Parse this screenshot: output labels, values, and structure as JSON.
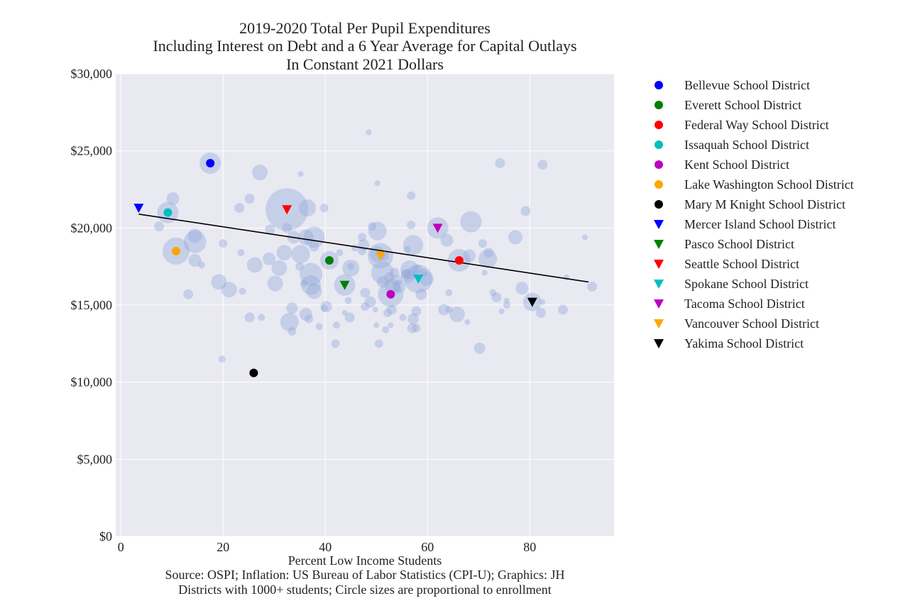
{
  "chart_data": {
    "type": "scatter",
    "title": [
      "2019-2020 Total Per Pupil Expenditures",
      "Including Interest on Debt and a 6 Year Average for Capital Outlays",
      "In Constant 2021 Dollars"
    ],
    "xlabel": "Percent Low Income Students",
    "caption": [
      "Source: OSPI; Inflation: US Bureau of Labor Statistics (CPI-U); Graphics: JH",
      "Districts with 1000+ students; Circle sizes are proportional to enrollment"
    ],
    "xlim": [
      -1,
      96.5
    ],
    "ylim": [
      0,
      30000
    ],
    "x_ticks": [
      0,
      20,
      40,
      60,
      80
    ],
    "y_ticks": [
      0,
      5000,
      10000,
      15000,
      20000,
      25000,
      30000
    ],
    "y_tick_labels": [
      "$0",
      "$5,000",
      "$10,000",
      "$15,000",
      "$20,000",
      "$25,000",
      "$30,000"
    ],
    "grid": true,
    "background_color": "#e9e9f2",
    "grid_color": "#ffffff",
    "bubble_color": "#8ea5d8",
    "legend_position": "outside-right",
    "trend_line": {
      "x": [
        3.5,
        91.5
      ],
      "y": [
        20900,
        16500
      ],
      "color": "#000000"
    },
    "highlighted": [
      {
        "name": "Bellevue School District",
        "x": 17.5,
        "y": 24200,
        "marker": "circle",
        "color": "#0000ff"
      },
      {
        "name": "Everett School District",
        "x": 40.8,
        "y": 17900,
        "marker": "circle",
        "color": "#008000"
      },
      {
        "name": "Federal Way School District",
        "x": 66.2,
        "y": 17900,
        "marker": "circle",
        "color": "#ff0000"
      },
      {
        "name": "Issaquah School District",
        "x": 9.2,
        "y": 21000,
        "marker": "circle",
        "color": "#00bfbf"
      },
      {
        "name": "Kent School District",
        "x": 52.8,
        "y": 15700,
        "marker": "circle",
        "color": "#bf00bf"
      },
      {
        "name": "Lake Washington School District",
        "x": 10.8,
        "y": 18500,
        "marker": "circle",
        "color": "#ffa500"
      },
      {
        "name": "Mary M Knight School District",
        "x": 26.0,
        "y": 10600,
        "marker": "circle",
        "color": "#000000"
      },
      {
        "name": "Mercer Island School District",
        "x": 3.5,
        "y": 21300,
        "marker": "triangle-down",
        "color": "#0000ff"
      },
      {
        "name": "Pasco School District",
        "x": 43.8,
        "y": 16300,
        "marker": "triangle-down",
        "color": "#008000"
      },
      {
        "name": "Seattle School District",
        "x": 32.5,
        "y": 21200,
        "marker": "triangle-down",
        "color": "#ff0000"
      },
      {
        "name": "Spokane School District",
        "x": 58.2,
        "y": 16700,
        "marker": "triangle-down",
        "color": "#00bfbf"
      },
      {
        "name": "Tacoma School District",
        "x": 62.0,
        "y": 20000,
        "marker": "triangle-down",
        "color": "#bf00bf"
      },
      {
        "name": "Vancouver School District",
        "x": 50.8,
        "y": 18200,
        "marker": "triangle-down",
        "color": "#ffa500"
      },
      {
        "name": "Yakima School District",
        "x": 80.5,
        "y": 15200,
        "marker": "triangle-down",
        "color": "#000000"
      }
    ],
    "bubbles": [
      {
        "x": 32.5,
        "y": 21200,
        "s": 30
      },
      {
        "x": 17.5,
        "y": 24200,
        "s": 15
      },
      {
        "x": 10.8,
        "y": 18500,
        "s": 19
      },
      {
        "x": 9.2,
        "y": 21000,
        "s": 15
      },
      {
        "x": 62.0,
        "y": 20000,
        "s": 15
      },
      {
        "x": 58.2,
        "y": 16700,
        "s": 20
      },
      {
        "x": 66.2,
        "y": 17900,
        "s": 16
      },
      {
        "x": 52.8,
        "y": 15700,
        "s": 18
      },
      {
        "x": 50.8,
        "y": 18200,
        "s": 18
      },
      {
        "x": 43.8,
        "y": 16300,
        "s": 15
      },
      {
        "x": 40.8,
        "y": 17900,
        "s": 13
      },
      {
        "x": 80.5,
        "y": 15200,
        "s": 13
      },
      {
        "x": 14.5,
        "y": 19100,
        "s": 16
      },
      {
        "x": 14.5,
        "y": 19500,
        "s": 10
      },
      {
        "x": 14.5,
        "y": 17900,
        "s": 9
      },
      {
        "x": 10.2,
        "y": 21900,
        "s": 9
      },
      {
        "x": 7.5,
        "y": 20100,
        "s": 7
      },
      {
        "x": 13.2,
        "y": 15700,
        "s": 7
      },
      {
        "x": 15.8,
        "y": 17600,
        "s": 5
      },
      {
        "x": 19.2,
        "y": 16500,
        "s": 11
      },
      {
        "x": 20.0,
        "y": 19000,
        "s": 6
      },
      {
        "x": 21.2,
        "y": 16000,
        "s": 11
      },
      {
        "x": 19.8,
        "y": 11500,
        "s": 5
      },
      {
        "x": 23.2,
        "y": 21300,
        "s": 7
      },
      {
        "x": 25.2,
        "y": 21900,
        "s": 7
      },
      {
        "x": 27.2,
        "y": 23600,
        "s": 11
      },
      {
        "x": 23.5,
        "y": 18400,
        "s": 5
      },
      {
        "x": 23.8,
        "y": 15900,
        "s": 5
      },
      {
        "x": 25.2,
        "y": 14200,
        "s": 7
      },
      {
        "x": 26.2,
        "y": 17600,
        "s": 11
      },
      {
        "x": 27.5,
        "y": 14200,
        "s": 5
      },
      {
        "x": 29.2,
        "y": 19900,
        "s": 7
      },
      {
        "x": 29.0,
        "y": 18000,
        "s": 9
      },
      {
        "x": 30.2,
        "y": 16400,
        "s": 11
      },
      {
        "x": 31.0,
        "y": 17400,
        "s": 11
      },
      {
        "x": 32.0,
        "y": 18400,
        "s": 11
      },
      {
        "x": 32.5,
        "y": 20000,
        "s": 7
      },
      {
        "x": 33.0,
        "y": 13900,
        "s": 13
      },
      {
        "x": 33.5,
        "y": 14800,
        "s": 8
      },
      {
        "x": 33.5,
        "y": 13300,
        "s": 6
      },
      {
        "x": 33.8,
        "y": 19400,
        "s": 9
      },
      {
        "x": 35.2,
        "y": 18300,
        "s": 13
      },
      {
        "x": 35.2,
        "y": 23500,
        "s": 4
      },
      {
        "x": 35.0,
        "y": 17500,
        "s": 6
      },
      {
        "x": 35.8,
        "y": 16400,
        "s": 5
      },
      {
        "x": 36.2,
        "y": 19400,
        "s": 11
      },
      {
        "x": 36.2,
        "y": 14400,
        "s": 9
      },
      {
        "x": 36.8,
        "y": 14100,
        "s": 6
      },
      {
        "x": 36.5,
        "y": 21300,
        "s": 12
      },
      {
        "x": 37.2,
        "y": 17000,
        "s": 16
      },
      {
        "x": 37.2,
        "y": 16300,
        "s": 14
      },
      {
        "x": 37.8,
        "y": 19400,
        "s": 15
      },
      {
        "x": 37.8,
        "y": 18800,
        "s": 7
      },
      {
        "x": 37.8,
        "y": 15900,
        "s": 11
      },
      {
        "x": 38.8,
        "y": 13600,
        "s": 5
      },
      {
        "x": 39.8,
        "y": 14800,
        "s": 5
      },
      {
        "x": 39.8,
        "y": 21300,
        "s": 6
      },
      {
        "x": 40.2,
        "y": 14900,
        "s": 8
      },
      {
        "x": 42.0,
        "y": 12500,
        "s": 6
      },
      {
        "x": 42.2,
        "y": 13700,
        "s": 5
      },
      {
        "x": 42.8,
        "y": 18400,
        "s": 5
      },
      {
        "x": 43.8,
        "y": 14500,
        "s": 4
      },
      {
        "x": 44.5,
        "y": 15300,
        "s": 5
      },
      {
        "x": 44.8,
        "y": 14200,
        "s": 7
      },
      {
        "x": 45.0,
        "y": 17400,
        "s": 12
      },
      {
        "x": 45.0,
        "y": 17500,
        "s": 5
      },
      {
        "x": 45.8,
        "y": 18700,
        "s": 5
      },
      {
        "x": 47.2,
        "y": 19400,
        "s": 6
      },
      {
        "x": 47.2,
        "y": 18500,
        "s": 6
      },
      {
        "x": 47.5,
        "y": 18900,
        "s": 8
      },
      {
        "x": 47.8,
        "y": 15800,
        "s": 7
      },
      {
        "x": 47.8,
        "y": 14900,
        "s": 6
      },
      {
        "x": 48.5,
        "y": 26200,
        "s": 4
      },
      {
        "x": 48.8,
        "y": 15200,
        "s": 8
      },
      {
        "x": 49.2,
        "y": 20100,
        "s": 6
      },
      {
        "x": 49.8,
        "y": 14700,
        "s": 4
      },
      {
        "x": 50.0,
        "y": 13700,
        "s": 4
      },
      {
        "x": 50.2,
        "y": 18300,
        "s": 11
      },
      {
        "x": 50.2,
        "y": 22900,
        "s": 4
      },
      {
        "x": 50.2,
        "y": 19800,
        "s": 13
      },
      {
        "x": 50.5,
        "y": 12500,
        "s": 6
      },
      {
        "x": 51.2,
        "y": 16500,
        "s": 8
      },
      {
        "x": 51.2,
        "y": 17100,
        "s": 16
      },
      {
        "x": 51.5,
        "y": 18200,
        "s": 7
      },
      {
        "x": 51.8,
        "y": 13400,
        "s": 5
      },
      {
        "x": 52.2,
        "y": 14500,
        "s": 6
      },
      {
        "x": 52.5,
        "y": 16800,
        "s": 7
      },
      {
        "x": 52.8,
        "y": 13700,
        "s": 4
      },
      {
        "x": 53.0,
        "y": 14700,
        "s": 7
      },
      {
        "x": 53.2,
        "y": 16200,
        "s": 11
      },
      {
        "x": 53.5,
        "y": 17100,
        "s": 7
      },
      {
        "x": 54.0,
        "y": 16600,
        "s": 8
      },
      {
        "x": 54.5,
        "y": 16200,
        "s": 9
      },
      {
        "x": 55.2,
        "y": 14200,
        "s": 5
      },
      {
        "x": 55.8,
        "y": 17000,
        "s": 7
      },
      {
        "x": 56.0,
        "y": 18600,
        "s": 5
      },
      {
        "x": 56.2,
        "y": 16900,
        "s": 10
      },
      {
        "x": 56.5,
        "y": 17300,
        "s": 13
      },
      {
        "x": 56.8,
        "y": 20200,
        "s": 6
      },
      {
        "x": 56.8,
        "y": 22100,
        "s": 6
      },
      {
        "x": 57.0,
        "y": 13500,
        "s": 7
      },
      {
        "x": 57.2,
        "y": 14100,
        "s": 8
      },
      {
        "x": 57.2,
        "y": 18900,
        "s": 14
      },
      {
        "x": 57.8,
        "y": 14600,
        "s": 7
      },
      {
        "x": 57.8,
        "y": 13500,
        "s": 6
      },
      {
        "x": 58.0,
        "y": 17300,
        "s": 7
      },
      {
        "x": 58.8,
        "y": 15700,
        "s": 8
      },
      {
        "x": 59.2,
        "y": 17100,
        "s": 6
      },
      {
        "x": 59.8,
        "y": 16700,
        "s": 10
      },
      {
        "x": 63.2,
        "y": 14700,
        "s": 8
      },
      {
        "x": 63.8,
        "y": 19200,
        "s": 9
      },
      {
        "x": 64.2,
        "y": 15800,
        "s": 5
      },
      {
        "x": 64.2,
        "y": 14700,
        "s": 5
      },
      {
        "x": 65.8,
        "y": 14400,
        "s": 11
      },
      {
        "x": 67.8,
        "y": 13900,
        "s": 4
      },
      {
        "x": 68.2,
        "y": 18200,
        "s": 9
      },
      {
        "x": 68.5,
        "y": 20400,
        "s": 15
      },
      {
        "x": 70.2,
        "y": 12200,
        "s": 8
      },
      {
        "x": 70.8,
        "y": 19000,
        "s": 6
      },
      {
        "x": 71.2,
        "y": 17100,
        "s": 4
      },
      {
        "x": 71.8,
        "y": 18000,
        "s": 13
      },
      {
        "x": 72.0,
        "y": 18400,
        "s": 7
      },
      {
        "x": 72.8,
        "y": 15800,
        "s": 5
      },
      {
        "x": 73.5,
        "y": 15500,
        "s": 7
      },
      {
        "x": 74.2,
        "y": 24200,
        "s": 7
      },
      {
        "x": 74.5,
        "y": 14600,
        "s": 4
      },
      {
        "x": 75.5,
        "y": 15000,
        "s": 5
      },
      {
        "x": 75.5,
        "y": 15300,
        "s": 4
      },
      {
        "x": 77.2,
        "y": 19400,
        "s": 10
      },
      {
        "x": 78.5,
        "y": 16100,
        "s": 9
      },
      {
        "x": 79.2,
        "y": 21100,
        "s": 7
      },
      {
        "x": 82.2,
        "y": 14500,
        "s": 7
      },
      {
        "x": 82.5,
        "y": 15200,
        "s": 4
      },
      {
        "x": 82.5,
        "y": 24100,
        "s": 7
      },
      {
        "x": 86.5,
        "y": 14700,
        "s": 7
      },
      {
        "x": 87.2,
        "y": 16800,
        "s": 4
      },
      {
        "x": 90.8,
        "y": 19400,
        "s": 4
      },
      {
        "x": 92.2,
        "y": 16200,
        "s": 7
      }
    ]
  }
}
